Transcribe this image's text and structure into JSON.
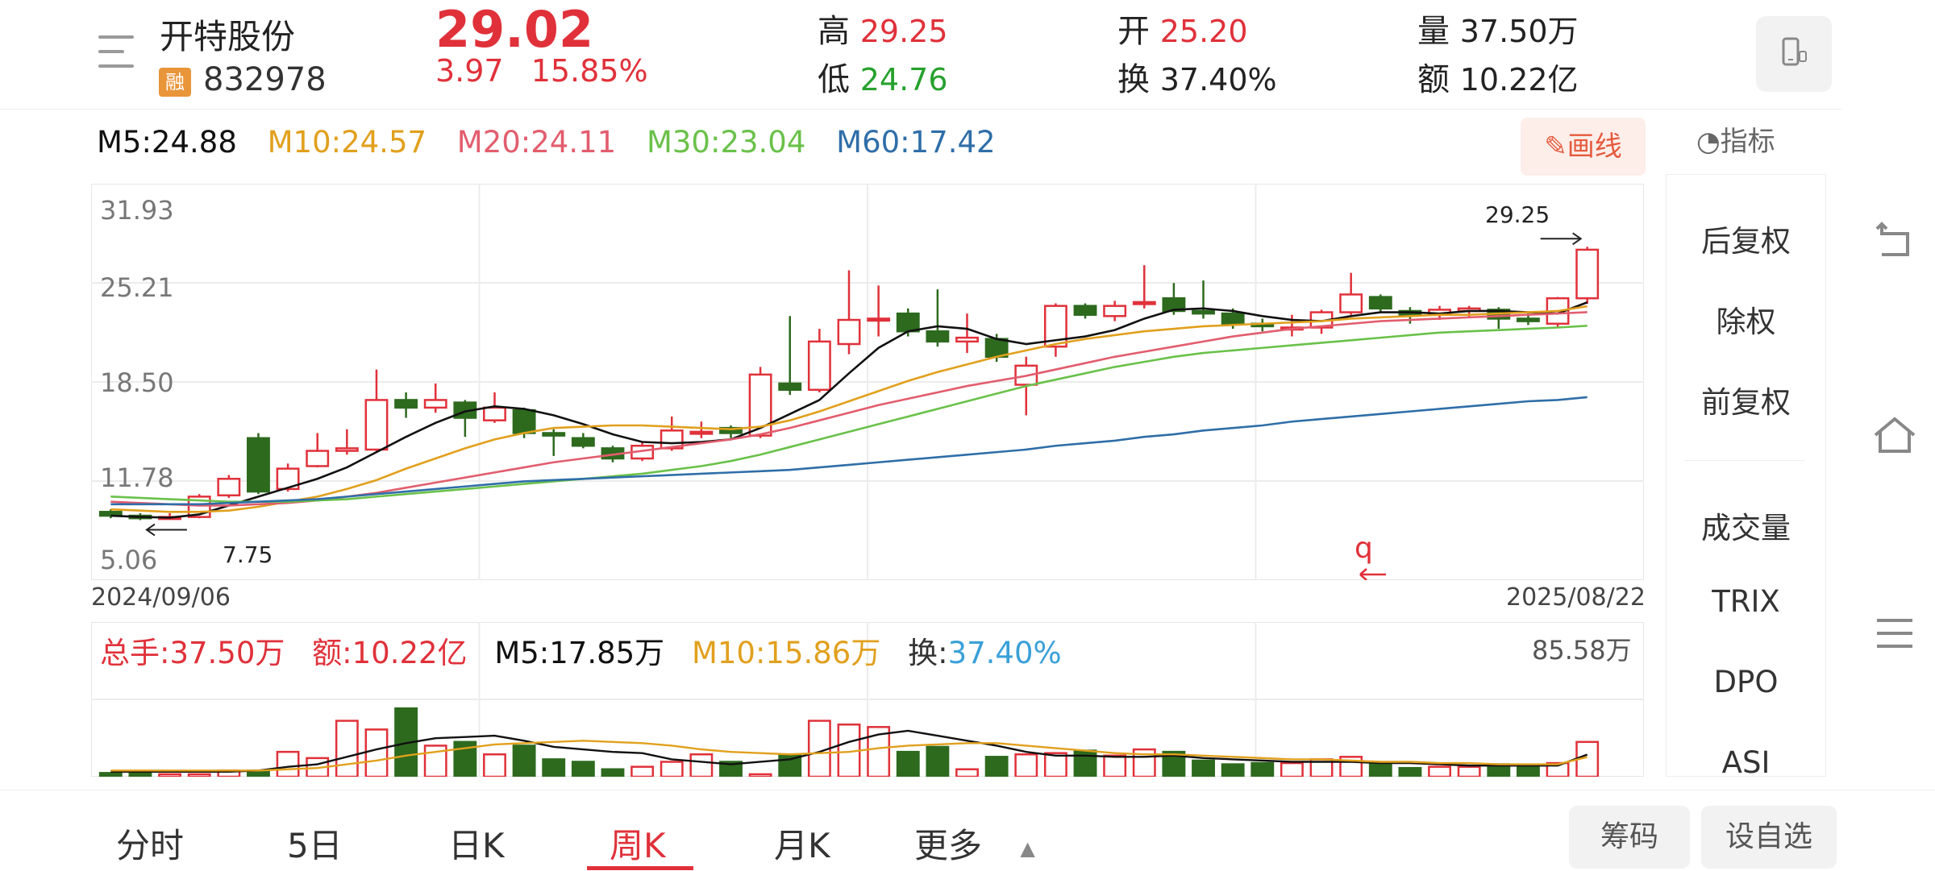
{
  "header": {
    "name": "开特股份",
    "rong_badge": "融",
    "code": "832978",
    "price": "29.02",
    "change": "3.97",
    "change_pct": "15.85%",
    "high_label": "高",
    "high": "29.25",
    "low_label": "低",
    "low": "24.76",
    "open_label": "开",
    "open": "25.20",
    "turnover_label": "换",
    "turnover": "37.40%",
    "volume_label": "量",
    "volume": "37.50万",
    "amount_label": "额",
    "amount": "10.22亿"
  },
  "ma_row": {
    "m5": "M5:24.88",
    "m10": "M10:24.57",
    "m20": "M20:24.11",
    "m30": "M30:23.04",
    "m60": "M60:17.42"
  },
  "draw_button": "画线",
  "indicator_label": "指标",
  "kchart": {
    "y_ticks": [
      "31.93",
      "25.21",
      "18.50",
      "11.78",
      "5.06"
    ],
    "start_date": "2024/09/06",
    "end_date": "2025/08/22",
    "max_marker": "29.25",
    "min_marker": "7.75",
    "note_mark": "q"
  },
  "volume": {
    "total": "总手:37.50万",
    "amount": "额:10.22亿",
    "m5": "M5:17.85万",
    "m10": "M10:15.86万",
    "turnover_label": "换:",
    "turnover": "37.40%",
    "max": "85.58万"
  },
  "side_panel": [
    "后复权",
    "除权",
    "前复权",
    "成交量",
    "TRIX",
    "DPO",
    "ASI"
  ],
  "tabs": [
    "分时",
    "5日",
    "日K",
    "周K",
    "月K",
    "更多"
  ],
  "pills": [
    "筹码",
    "设自选"
  ],
  "colors": {
    "up": "#e0313a",
    "down": "#2d6a1e",
    "m5": "#111111",
    "m10": "#e1a01d",
    "m20": "#e25d6e",
    "m30": "#6ac14a",
    "m60": "#2f6ea8"
  },
  "chart_data": {
    "type": "candlestick",
    "title": "",
    "period": "weekly",
    "x_range": [
      "2024/09/06",
      "2025/08/22"
    ],
    "ylim": [
      5.06,
      31.93
    ],
    "candles": [
      {
        "o": 8.4,
        "c": 8.1,
        "h": 8.6,
        "l": 7.9
      },
      {
        "o": 8.1,
        "c": 7.9,
        "h": 8.3,
        "l": 7.75
      },
      {
        "o": 7.9,
        "c": 8.0,
        "h": 8.3,
        "l": 7.8
      },
      {
        "o": 8.0,
        "c": 9.6,
        "h": 9.8,
        "l": 7.9
      },
      {
        "o": 9.7,
        "c": 11.0,
        "h": 11.3,
        "l": 9.5
      },
      {
        "o": 14.2,
        "c": 10.0,
        "h": 14.6,
        "l": 9.8
      },
      {
        "o": 10.2,
        "c": 11.8,
        "h": 12.2,
        "l": 10.0
      },
      {
        "o": 12.0,
        "c": 13.2,
        "h": 14.6,
        "l": 11.9
      },
      {
        "o": 13.2,
        "c": 13.4,
        "h": 14.9,
        "l": 12.9
      },
      {
        "o": 13.3,
        "c": 17.2,
        "h": 19.6,
        "l": 13.1
      },
      {
        "o": 17.2,
        "c": 16.6,
        "h": 17.8,
        "l": 15.8
      },
      {
        "o": 16.6,
        "c": 17.2,
        "h": 18.5,
        "l": 16.2
      },
      {
        "o": 17.0,
        "c": 15.8,
        "h": 17.2,
        "l": 14.3
      },
      {
        "o": 15.6,
        "c": 16.6,
        "h": 17.8,
        "l": 15.4
      },
      {
        "o": 16.4,
        "c": 14.6,
        "h": 16.6,
        "l": 14.2
      },
      {
        "o": 14.6,
        "c": 14.4,
        "h": 14.9,
        "l": 12.8
      },
      {
        "o": 14.2,
        "c": 13.6,
        "h": 14.6,
        "l": 13.4
      },
      {
        "o": 13.4,
        "c": 12.6,
        "h": 13.6,
        "l": 12.3
      },
      {
        "o": 12.6,
        "c": 13.6,
        "h": 13.9,
        "l": 12.4
      },
      {
        "o": 13.4,
        "c": 14.8,
        "h": 15.9,
        "l": 13.2
      },
      {
        "o": 14.6,
        "c": 14.7,
        "h": 15.5,
        "l": 14.2
      },
      {
        "o": 15.0,
        "c": 14.6,
        "h": 15.2,
        "l": 14.2
      },
      {
        "o": 14.4,
        "c": 19.2,
        "h": 19.8,
        "l": 14.2
      },
      {
        "o": 18.5,
        "c": 18.0,
        "h": 23.8,
        "l": 17.6
      },
      {
        "o": 18.0,
        "c": 21.8,
        "h": 22.8,
        "l": 17.8
      },
      {
        "o": 21.6,
        "c": 23.5,
        "h": 27.4,
        "l": 20.8
      },
      {
        "o": 23.6,
        "c": 23.6,
        "h": 26.2,
        "l": 22.2
      },
      {
        "o": 24.0,
        "c": 22.6,
        "h": 24.4,
        "l": 22.2
      },
      {
        "o": 22.6,
        "c": 21.8,
        "h": 25.9,
        "l": 21.4
      },
      {
        "o": 21.8,
        "c": 22.1,
        "h": 24.0,
        "l": 20.9
      },
      {
        "o": 22.0,
        "c": 20.6,
        "h": 22.4,
        "l": 20.2
      },
      {
        "o": 18.4,
        "c": 19.9,
        "h": 20.6,
        "l": 16.0
      },
      {
        "o": 21.4,
        "c": 24.6,
        "h": 24.8,
        "l": 20.6
      },
      {
        "o": 24.6,
        "c": 23.9,
        "h": 24.8,
        "l": 23.6
      },
      {
        "o": 23.8,
        "c": 24.6,
        "h": 25.0,
        "l": 23.4
      },
      {
        "o": 24.8,
        "c": 24.9,
        "h": 27.8,
        "l": 24.4
      },
      {
        "o": 25.2,
        "c": 24.2,
        "h": 26.4,
        "l": 23.9
      },
      {
        "o": 24.2,
        "c": 24.0,
        "h": 26.6,
        "l": 23.6
      },
      {
        "o": 24.0,
        "c": 23.2,
        "h": 24.4,
        "l": 22.8
      },
      {
        "o": 23.2,
        "c": 23.0,
        "h": 23.6,
        "l": 22.6
      },
      {
        "o": 22.8,
        "c": 22.9,
        "h": 23.9,
        "l": 22.2
      },
      {
        "o": 22.9,
        "c": 24.1,
        "h": 24.3,
        "l": 22.4
      },
      {
        "o": 24.1,
        "c": 25.5,
        "h": 27.2,
        "l": 23.9
      },
      {
        "o": 25.3,
        "c": 24.4,
        "h": 25.5,
        "l": 24.1
      },
      {
        "o": 24.2,
        "c": 23.9,
        "h": 24.5,
        "l": 23.2
      },
      {
        "o": 23.9,
        "c": 24.3,
        "h": 24.6,
        "l": 23.5
      },
      {
        "o": 24.2,
        "c": 24.4,
        "h": 24.6,
        "l": 23.7
      },
      {
        "o": 24.3,
        "c": 23.6,
        "h": 24.5,
        "l": 22.8
      },
      {
        "o": 23.6,
        "c": 23.4,
        "h": 24.0,
        "l": 23.1
      },
      {
        "o": 23.2,
        "c": 25.2,
        "h": 25.3,
        "l": 22.9
      },
      {
        "o": 25.2,
        "c": 29.02,
        "h": 29.25,
        "l": 24.76
      }
    ],
    "ma_lines": {
      "M5": [
        8.1,
        8.0,
        7.95,
        8.2,
        8.9,
        9.6,
        10.3,
        11.0,
        11.9,
        13.1,
        14.3,
        15.4,
        16.3,
        16.7,
        16.5,
        16.0,
        15.3,
        14.5,
        13.9,
        13.8,
        13.9,
        14.1,
        15.0,
        16.1,
        17.2,
        19.3,
        21.3,
        22.6,
        23.0,
        22.8,
        22.0,
        21.6,
        21.9,
        22.2,
        22.7,
        23.6,
        24.3,
        24.4,
        24.2,
        23.8,
        23.5,
        23.4,
        23.8,
        24.1,
        24.1,
        24.0,
        24.2,
        24.2,
        24.1,
        24.0,
        24.88
      ],
      "M10": [
        8.6,
        8.5,
        8.4,
        8.4,
        8.5,
        8.8,
        9.2,
        9.6,
        10.2,
        10.9,
        11.8,
        12.6,
        13.4,
        14.1,
        14.6,
        15.0,
        15.1,
        15.2,
        15.2,
        15.1,
        15.0,
        14.9,
        15.1,
        15.6,
        16.3,
        17.1,
        17.9,
        18.7,
        19.4,
        20.0,
        20.6,
        21.1,
        21.6,
        22.0,
        22.3,
        22.6,
        22.8,
        23.0,
        23.1,
        23.2,
        23.3,
        23.4,
        23.6,
        23.7,
        23.8,
        23.9,
        23.9,
        24.0,
        24.1,
        24.2,
        24.57
      ],
      "M20": [
        9.2,
        9.1,
        9.0,
        8.9,
        8.9,
        9.0,
        9.1,
        9.3,
        9.6,
        9.9,
        10.3,
        10.7,
        11.1,
        11.5,
        11.9,
        12.3,
        12.6,
        12.9,
        13.2,
        13.5,
        13.8,
        14.1,
        14.5,
        15.0,
        15.6,
        16.2,
        16.8,
        17.3,
        17.8,
        18.3,
        18.7,
        19.1,
        19.6,
        20.1,
        20.6,
        21.0,
        21.4,
        21.8,
        22.2,
        22.5,
        22.8,
        23.0,
        23.2,
        23.4,
        23.5,
        23.6,
        23.7,
        23.8,
        23.9,
        24.0,
        24.11
      ],
      "M30": [
        9.6,
        9.5,
        9.4,
        9.3,
        9.2,
        9.2,
        9.2,
        9.3,
        9.4,
        9.6,
        9.8,
        10.0,
        10.2,
        10.4,
        10.6,
        10.8,
        11.0,
        11.2,
        11.4,
        11.7,
        12.0,
        12.4,
        12.9,
        13.5,
        14.1,
        14.7,
        15.3,
        15.9,
        16.5,
        17.1,
        17.7,
        18.3,
        18.8,
        19.3,
        19.8,
        20.2,
        20.6,
        20.9,
        21.1,
        21.3,
        21.5,
        21.7,
        21.9,
        22.1,
        22.3,
        22.5,
        22.6,
        22.7,
        22.8,
        22.9,
        23.04
      ],
      "M60": [
        9.0,
        9.0,
        9.0,
        9.0,
        9.1,
        9.2,
        9.3,
        9.4,
        9.6,
        9.8,
        10.0,
        10.2,
        10.4,
        10.6,
        10.8,
        10.9,
        11.0,
        11.1,
        11.2,
        11.3,
        11.4,
        11.5,
        11.6,
        11.7,
        11.9,
        12.1,
        12.3,
        12.5,
        12.7,
        12.9,
        13.1,
        13.3,
        13.6,
        13.8,
        14.0,
        14.3,
        14.5,
        14.8,
        15.0,
        15.2,
        15.5,
        15.7,
        15.9,
        16.1,
        16.3,
        16.5,
        16.7,
        16.9,
        17.1,
        17.2,
        17.42
      ]
    },
    "volume_bars": [
      3,
      3,
      2,
      2,
      5,
      5,
      20,
      15,
      45,
      38,
      55,
      25,
      28,
      18,
      25,
      14,
      12,
      6,
      8,
      12,
      18,
      12,
      2,
      18,
      45,
      42,
      40,
      20,
      24,
      6,
      16,
      18,
      19,
      21,
      17,
      22,
      20,
      13,
      10,
      11,
      11,
      14,
      16,
      11,
      7,
      8,
      8,
      10,
      9,
      11,
      28
    ],
    "volume_m5": [
      4,
      4,
      4,
      4,
      4,
      5,
      8,
      10,
      16,
      22,
      27,
      31,
      32,
      33,
      29,
      24,
      22,
      20,
      19,
      14,
      12,
      10,
      12,
      14,
      20,
      28,
      34,
      37,
      33,
      29,
      25,
      20,
      17,
      17,
      16,
      16,
      17,
      15,
      14,
      13,
      12,
      12,
      12,
      11,
      11,
      10,
      9,
      9,
      9,
      9,
      17.85
    ],
    "volume_m10": [
      5,
      5,
      5,
      5,
      5,
      5,
      6,
      7,
      10,
      13,
      17,
      20,
      23,
      26,
      27,
      28,
      29,
      28,
      27,
      25,
      22,
      20,
      19,
      18,
      19,
      20,
      23,
      25,
      26,
      27,
      27,
      25,
      23,
      21,
      19,
      18,
      18,
      17,
      16,
      15,
      14,
      14,
      13,
      12,
      12,
      11,
      11,
      10,
      10,
      10,
      15.86
    ],
    "volume_ylim": [
      0,
      85.58
    ],
    "volume_unit": "万"
  }
}
